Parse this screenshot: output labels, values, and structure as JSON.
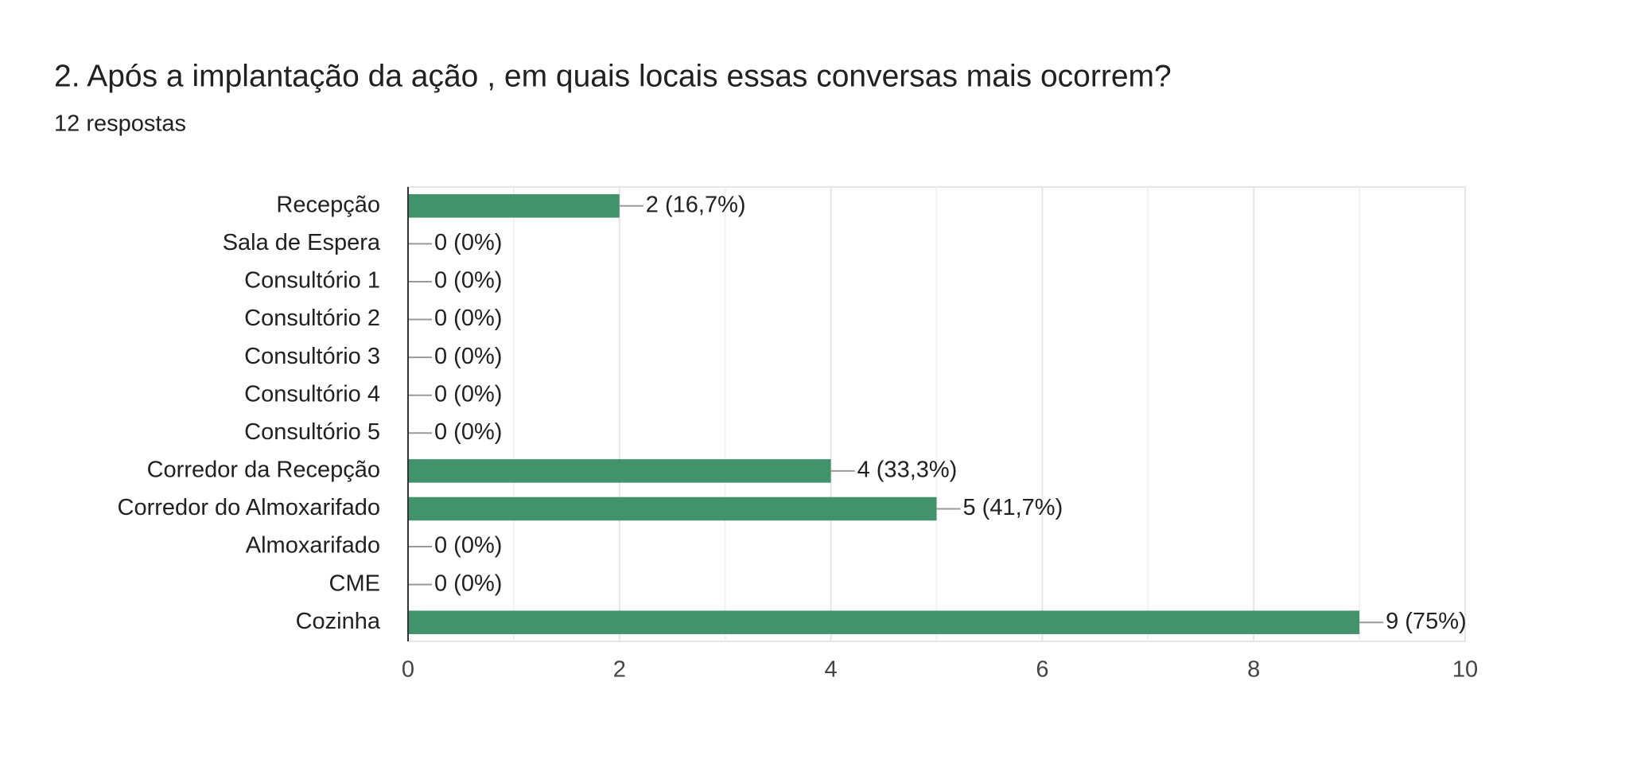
{
  "chart_data": {
    "type": "bar",
    "orientation": "horizontal",
    "title": "2.  Após a implantação da ação , em quais locais essas conversas mais ocorrem?",
    "subtitle": "12 respostas",
    "categories": [
      "Recepção",
      "Sala de Espera",
      "Consultório 1",
      "Consultório 2",
      "Consultório 3",
      "Consultório 4",
      "Consultório 5",
      "Corredor da Recepção",
      "Corredor do Almoxarifado",
      "Almoxarifado",
      "CME",
      "Cozinha"
    ],
    "values": [
      2,
      0,
      0,
      0,
      0,
      0,
      0,
      4,
      5,
      0,
      0,
      9
    ],
    "value_labels": [
      "2 (16,7%)",
      "0 (0%)",
      "0 (0%)",
      "0 (0%)",
      "0 (0%)",
      "0 (0%)",
      "0 (0%)",
      "4 (33,3%)",
      "5 (41,7%)",
      "0 (0%)",
      "0 (0%)",
      "9 (75%)"
    ],
    "color": "#42926b",
    "xlim": [
      0,
      10
    ],
    "xticks": [
      0,
      2,
      4,
      6,
      8,
      10
    ],
    "xminor": [
      1,
      3,
      5,
      7,
      9
    ],
    "grid": true
  }
}
